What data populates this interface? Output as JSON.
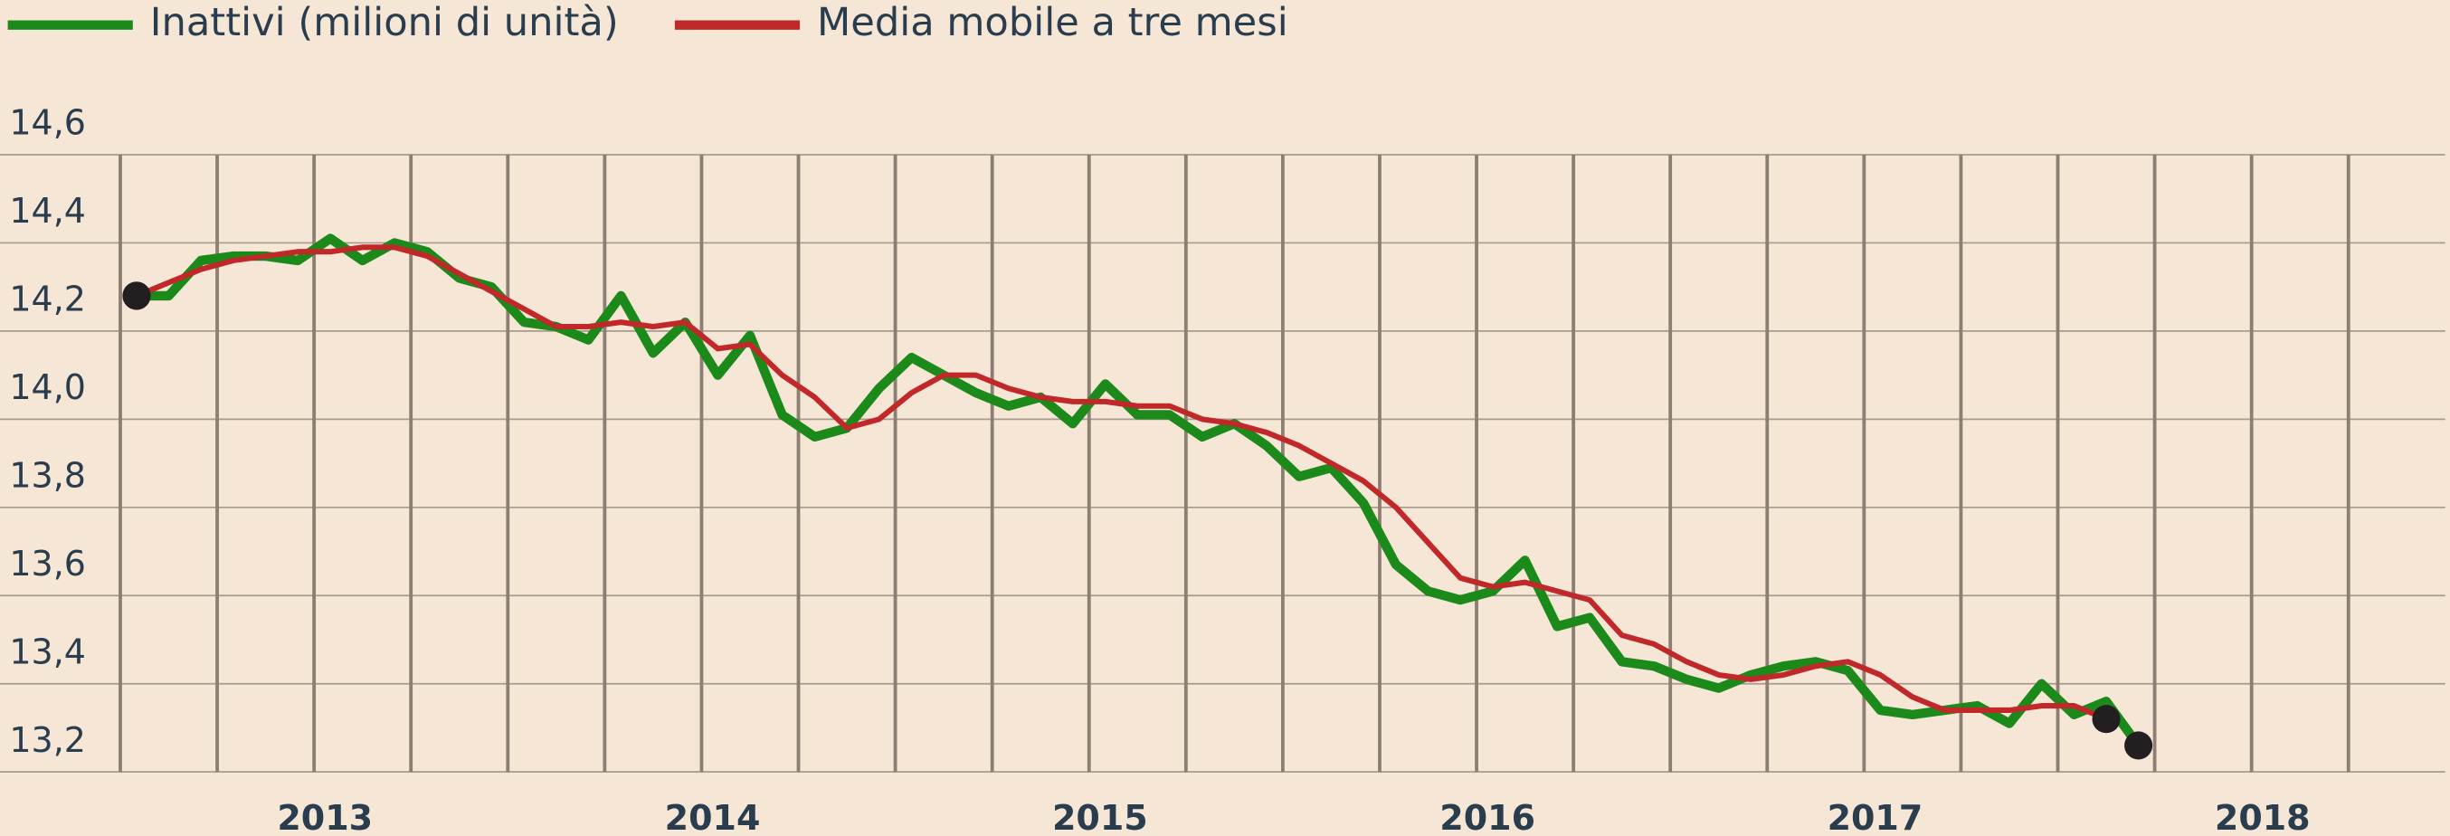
{
  "chart_data": {
    "type": "line",
    "x": [
      2012.542,
      2012.625,
      2012.708,
      2012.792,
      2012.875,
      2012.958,
      2013.042,
      2013.125,
      2013.208,
      2013.292,
      2013.375,
      2013.458,
      2013.542,
      2013.625,
      2013.708,
      2013.792,
      2013.875,
      2013.958,
      2014.042,
      2014.125,
      2014.208,
      2014.292,
      2014.375,
      2014.458,
      2014.542,
      2014.625,
      2014.708,
      2014.792,
      2014.875,
      2014.958,
      2015.042,
      2015.125,
      2015.208,
      2015.292,
      2015.375,
      2015.458,
      2015.542,
      2015.625,
      2015.708,
      2015.792,
      2015.875,
      2015.958,
      2016.042,
      2016.125,
      2016.208,
      2016.292,
      2016.375,
      2016.458,
      2016.542,
      2016.625,
      2016.708,
      2016.792,
      2016.875,
      2016.958,
      2017.042,
      2017.125,
      2017.208,
      2017.292,
      2017.375,
      2017.458,
      2017.542,
      2017.625,
      2017.708
    ],
    "series": [
      {
        "name": "Inattivi (milioni di unità)",
        "color": "#1b8a1b",
        "width": 6,
        "values": [
          14.28,
          14.28,
          14.36,
          14.37,
          14.37,
          14.36,
          14.41,
          14.36,
          14.4,
          14.38,
          14.32,
          14.3,
          14.22,
          14.21,
          14.18,
          14.28,
          14.15,
          14.22,
          14.1,
          14.19,
          14.01,
          13.96,
          13.98,
          14.07,
          14.14,
          14.1,
          14.06,
          14.03,
          14.05,
          13.99,
          14.08,
          14.01,
          14.01,
          13.96,
          13.99,
          13.94,
          13.87,
          13.89,
          13.81,
          13.67,
          13.61,
          13.59,
          13.61,
          13.68,
          13.53,
          13.55,
          13.45,
          13.44,
          13.41,
          13.39,
          13.42,
          13.44,
          13.45,
          13.43,
          13.34,
          13.33,
          13.34,
          13.35,
          13.31,
          13.4,
          13.33,
          13.36,
          13.26
        ]
      },
      {
        "name": "Media mobile a tre mesi",
        "color": "#c0282a",
        "width": 3.5,
        "values": [
          14.28,
          14.31,
          14.34,
          14.36,
          14.37,
          14.38,
          14.38,
          14.39,
          14.39,
          14.37,
          14.33,
          14.29,
          14.25,
          14.21,
          14.21,
          14.22,
          14.21,
          14.22,
          14.16,
          14.17,
          14.1,
          14.05,
          13.98,
          14.0,
          14.06,
          14.1,
          14.1,
          14.07,
          14.05,
          14.04,
          14.04,
          14.03,
          14.03,
          14.0,
          13.99,
          13.97,
          13.94,
          13.9,
          13.86,
          13.8,
          13.72,
          13.64,
          13.62,
          13.63,
          13.61,
          13.59,
          13.51,
          13.49,
          13.45,
          13.42,
          13.41,
          13.42,
          13.44,
          13.45,
          13.42,
          13.37,
          13.34,
          13.34,
          13.34,
          13.35,
          13.35,
          13.32,
          null
        ]
      }
    ],
    "xlim": [
      2012.5,
      2018.5
    ],
    "xticks": [
      2013,
      2014,
      2015,
      2016,
      2017,
      2018
    ],
    "x_grid_lines": [
      2012.5,
      2012.75,
      2013,
      2013.25,
      2013.5,
      2013.75,
      2014,
      2014.25,
      2014.5,
      2014.75,
      2015,
      2015.25,
      2015.5,
      2015.75,
      2016,
      2016.25,
      2016.5,
      2016.75,
      2017,
      2017.25,
      2017.5,
      2017.75,
      2018,
      2018.25
    ],
    "ylim": [
      13.2,
      14.6
    ],
    "yticks": [
      {
        "value": 13.2,
        "label": "13,2"
      },
      {
        "value": 13.4,
        "label": "13,4"
      },
      {
        "value": 13.6,
        "label": "13,6"
      },
      {
        "value": 13.8,
        "label": "13,8"
      },
      {
        "value": 14.0,
        "label": "14,0"
      },
      {
        "value": 14.2,
        "label": "14,2"
      },
      {
        "value": 14.4,
        "label": "14,4"
      },
      {
        "value": 14.6,
        "label": "14,6"
      }
    ],
    "grid": true,
    "legend": "top-left",
    "end_markers": true
  }
}
